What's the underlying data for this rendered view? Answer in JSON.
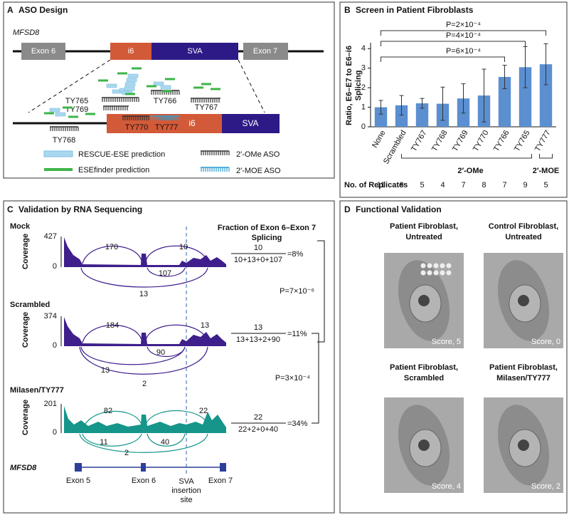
{
  "panel_a": {
    "label": "A",
    "title": "ASO Design",
    "gene": "MFSD8",
    "exon_left": "Exon 6",
    "exon_right": "Exon 7",
    "intron": "i6",
    "sva": "SVA",
    "asos": [
      "TY765",
      "TY769",
      "TY766",
      "TY767",
      "TY768",
      "TY770",
      "TY777"
    ],
    "zoom_intron": "i6",
    "zoom_sva": "SVA",
    "legend": [
      "RESCUE-ESE prediction",
      "ESEfinder prediction",
      "2′-OMe ASO",
      "2′-MOE ASO"
    ]
  },
  "chart_data": {
    "type": "bar",
    "panel_label": "B",
    "title": "Screen in Patient Fibroblasts",
    "y_label": [
      "Ratio, E6–E7 to E6–i6",
      "Splicing"
    ],
    "categories": [
      "None",
      "Scrambled",
      "TY767",
      "TY768",
      "TY769",
      "TY770",
      "TY766",
      "TY765",
      "TY777"
    ],
    "values": [
      1.0,
      1.1,
      1.2,
      1.18,
      1.45,
      1.6,
      2.55,
      3.05,
      3.2
    ],
    "errors": [
      0.35,
      0.5,
      0.25,
      0.85,
      0.75,
      1.35,
      0.6,
      1.05,
      1.05
    ],
    "color": "#5b8fd0",
    "ylim": [
      0,
      4.3
    ],
    "yticks": [
      0,
      1,
      2,
      3,
      4
    ],
    "annotations": [
      "P=6×10⁻⁴",
      "P=4×10⁻⁴",
      "P=2×10⁻⁴"
    ],
    "group_labels": [
      "2′-OMe",
      "2′-MOE"
    ],
    "replicates_label": "No. of Replicates",
    "replicates": [
      11,
      8,
      5,
      4,
      7,
      8,
      7,
      9,
      5
    ]
  },
  "panel_c": {
    "label": "C",
    "title": "Validation by RNA Sequencing",
    "fraction_title": [
      "Fraction of Exon 6–Exon 7",
      "Splicing"
    ],
    "coverage_label": "Coverage",
    "tracks": [
      {
        "name": "Mock",
        "max": 427,
        "min": 0,
        "junctions": [
          170,
          10,
          107,
          13
        ],
        "numerator": 10,
        "denominator": "10+13+0+107",
        "result": "=8%"
      },
      {
        "name": "Scrambled",
        "max": 374,
        "min": 0,
        "junctions": [
          184,
          13,
          90,
          13,
          2
        ],
        "numerator": 13,
        "denominator": "13+13+2+90",
        "result": "=11%"
      },
      {
        "name": "Milasen/TY777",
        "max": 201,
        "min": 0,
        "junctions": [
          82,
          22,
          11,
          40,
          2
        ],
        "numerator": 22,
        "denominator": "22+2+0+40",
        "result": "=34%"
      }
    ],
    "p_values": [
      "P=7×10⁻⁶",
      "P=3×10⁻⁴"
    ],
    "gene": "MFSD8",
    "exons": [
      "Exon 5",
      "Exon 6",
      "Exon 7"
    ],
    "sva_site": [
      "SVA",
      "insertion",
      "site"
    ]
  },
  "panel_d": {
    "label": "D",
    "title": "Functional Validation",
    "images": [
      {
        "caption": [
          "Patient Fibroblast,",
          "Untreated"
        ],
        "score": "Score, 5"
      },
      {
        "caption": [
          "Control Fibroblast,",
          "Untreated"
        ],
        "score": "Score, 0"
      },
      {
        "caption": [
          "Patient Fibroblast,",
          "Scrambled"
        ],
        "score": "Score, 4"
      },
      {
        "caption": [
          "Patient Fibroblast,",
          "Milasen/TY777"
        ],
        "score": "Score, 2"
      }
    ]
  }
}
